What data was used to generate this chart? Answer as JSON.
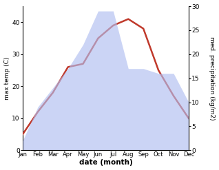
{
  "months": [
    "Jan",
    "Feb",
    "Mar",
    "Apr",
    "May",
    "Jun",
    "Jul",
    "Aug",
    "Sep",
    "Oct",
    "Nov",
    "Dec"
  ],
  "temperature": [
    5,
    12,
    18,
    26,
    27,
    35,
    39,
    41,
    38,
    25,
    17,
    10
  ],
  "precipitation": [
    2,
    9,
    13,
    17,
    22,
    29,
    29,
    17,
    17,
    16,
    16,
    10
  ],
  "temp_color": "#c0392b",
  "precip_fill_color": "#b0bef0",
  "precip_fill_alpha": 0.65,
  "temp_ylim": [
    0,
    45
  ],
  "precip_ylim": [
    0,
    30
  ],
  "temp_yticks": [
    0,
    10,
    20,
    30,
    40
  ],
  "precip_yticks": [
    0,
    5,
    10,
    15,
    20,
    25,
    30
  ],
  "xlabel": "date (month)",
  "ylabel_left": "max temp (C)",
  "ylabel_right": "med. precipitation (kg/m2)",
  "fig_width": 3.18,
  "fig_height": 2.47,
  "dpi": 100
}
